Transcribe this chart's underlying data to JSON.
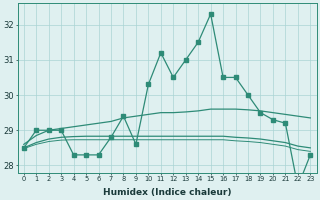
{
  "x": [
    0,
    1,
    2,
    3,
    4,
    5,
    6,
    7,
    8,
    9,
    10,
    11,
    12,
    13,
    14,
    15,
    16,
    17,
    18,
    19,
    20,
    21,
    22,
    23
  ],
  "line_main": [
    28.5,
    29.0,
    29.0,
    29.0,
    28.3,
    28.3,
    28.3,
    28.8,
    29.4,
    28.6,
    30.3,
    31.2,
    30.5,
    31.0,
    31.5,
    32.3,
    30.5,
    30.5,
    30.0,
    29.5,
    29.3,
    29.2,
    27.4,
    28.3
  ],
  "line_avg_high": [
    28.6,
    28.85,
    29.0,
    29.05,
    29.1,
    29.15,
    29.2,
    29.25,
    29.35,
    29.4,
    29.45,
    29.5,
    29.5,
    29.52,
    29.55,
    29.6,
    29.6,
    29.6,
    29.58,
    29.55,
    29.5,
    29.45,
    29.4,
    29.35
  ],
  "line_avg_mid": [
    28.5,
    28.65,
    28.75,
    28.8,
    28.82,
    28.83,
    28.83,
    28.83,
    28.83,
    28.83,
    28.83,
    28.83,
    28.83,
    28.83,
    28.83,
    28.83,
    28.83,
    28.8,
    28.78,
    28.75,
    28.7,
    28.65,
    28.55,
    28.5
  ],
  "line_avg_low": [
    28.48,
    28.6,
    28.68,
    28.72,
    28.73,
    28.73,
    28.73,
    28.73,
    28.73,
    28.73,
    28.73,
    28.73,
    28.73,
    28.73,
    28.73,
    28.73,
    28.73,
    28.7,
    28.68,
    28.65,
    28.6,
    28.55,
    28.45,
    28.4
  ],
  "line_color": "#2e8b77",
  "background_color": "#dff0f0",
  "grid_color": "#aad4d4",
  "ylim": [
    27.8,
    32.6
  ],
  "yticks": [
    28,
    29,
    30,
    31,
    32
  ],
  "xlabel": "Humidex (Indice chaleur)"
}
